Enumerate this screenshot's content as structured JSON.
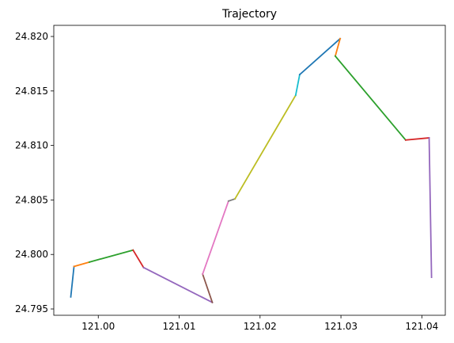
{
  "chart_data": {
    "type": "line",
    "title": "Trajectory",
    "xlabel": "",
    "ylabel": "",
    "xlim": [
      120.9945,
      121.0429
    ],
    "ylim": [
      24.79442,
      24.82102
    ],
    "x_ticks": [
      121.0,
      121.01,
      121.02,
      121.03,
      121.04
    ],
    "x_tick_labels": [
      "121.00",
      "121.01",
      "121.02",
      "121.03",
      "121.04"
    ],
    "y_ticks": [
      24.795,
      24.8,
      24.805,
      24.81,
      24.815,
      24.82
    ],
    "y_tick_labels": [
      "24.795",
      "24.800",
      "24.805",
      "24.810",
      "24.815",
      "24.820"
    ],
    "grid": false,
    "legend": "none",
    "segments": [
      {
        "color": "#1f77b4",
        "x": [
          120.9966,
          120.997
        ],
        "y": [
          24.7961,
          24.7989
        ]
      },
      {
        "color": "#ff7f0e",
        "x": [
          120.997,
          120.9989
        ],
        "y": [
          24.7989,
          24.7993
        ]
      },
      {
        "color": "#2ca02c",
        "x": [
          120.9989,
          121.0043
        ],
        "y": [
          24.7993,
          24.8004
        ]
      },
      {
        "color": "#d62728",
        "x": [
          121.0043,
          121.0056
        ],
        "y": [
          24.8004,
          24.7988
        ]
      },
      {
        "color": "#9467bd",
        "x": [
          121.0056,
          121.0141
        ],
        "y": [
          24.7988,
          24.7956
        ]
      },
      {
        "color": "#8c564b",
        "x": [
          121.0141,
          121.0129
        ],
        "y": [
          24.7956,
          24.7982
        ]
      },
      {
        "color": "#e377c2",
        "x": [
          121.0129,
          121.0161
        ],
        "y": [
          24.7982,
          24.8049
        ]
      },
      {
        "color": "#7f7f7f",
        "x": [
          121.0161,
          121.0169
        ],
        "y": [
          24.8049,
          24.8051
        ]
      },
      {
        "color": "#bcbd22",
        "x": [
          121.0169,
          121.0244
        ],
        "y": [
          24.8051,
          24.8146
        ]
      },
      {
        "color": "#17becf",
        "x": [
          121.0244,
          121.0249
        ],
        "y": [
          24.8146,
          24.8165
        ]
      },
      {
        "color": "#1f77b4",
        "x": [
          121.0249,
          121.0299
        ],
        "y": [
          24.8165,
          24.8198
        ]
      },
      {
        "color": "#ff7f0e",
        "x": [
          121.0299,
          121.0293
        ],
        "y": [
          24.8198,
          24.8182
        ]
      },
      {
        "color": "#2ca02c",
        "x": [
          121.0293,
          121.038
        ],
        "y": [
          24.8182,
          24.8105
        ]
      },
      {
        "color": "#d62728",
        "x": [
          121.038,
          121.0409
        ],
        "y": [
          24.8105,
          24.8107
        ]
      },
      {
        "color": "#9467bd",
        "x": [
          121.0409,
          121.0412
        ],
        "y": [
          24.8107,
          24.7979
        ]
      }
    ]
  }
}
